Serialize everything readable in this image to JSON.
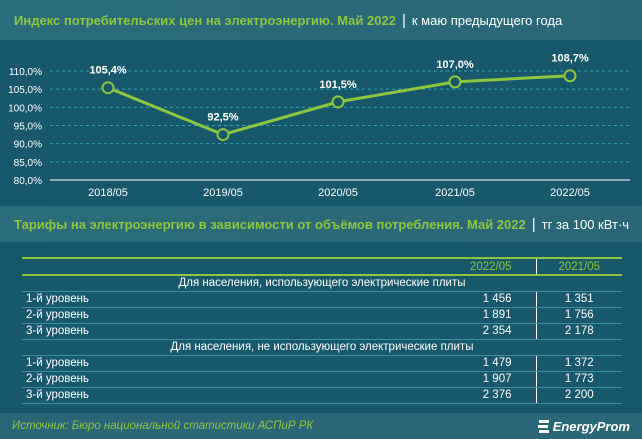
{
  "chart_data": {
    "type": "line",
    "title": "Индекс потребительских цен на электроэнергию. Май 2022",
    "subtitle": "к маю предыдущего года",
    "categories": [
      "2018/05",
      "2019/05",
      "2020/05",
      "2021/05",
      "2022/05"
    ],
    "values": [
      105.4,
      92.5,
      101.5,
      107.0,
      108.7
    ],
    "data_labels": [
      "105,4%",
      "92,5%",
      "101,5%",
      "107,0%",
      "108,7%"
    ],
    "yticks": [
      "80,0%",
      "85,0%",
      "90,0%",
      "95,0%",
      "100,0%",
      "105,0%",
      "110,0%"
    ],
    "ylim": [
      80,
      110
    ],
    "grid": true,
    "line_color": "#8dc63f"
  },
  "table": {
    "title": "Тарифы на электроэнергию в зависимости от объёмов потребления. Май 2022",
    "unit": "тг за 100 кВт·ч",
    "columns": [
      "2022/05",
      "2021/05"
    ],
    "sections": [
      {
        "label": "Для населения, использующего электрические плиты",
        "rows": [
          {
            "label": "1-й уровень",
            "v": [
              "1 456",
              "1 351"
            ]
          },
          {
            "label": "2-й уровень",
            "v": [
              "1 891",
              "1 756"
            ]
          },
          {
            "label": "3-й уровень",
            "v": [
              "2 354",
              "2 178"
            ]
          }
        ]
      },
      {
        "label": "Для населения, не использующего электрические плиты",
        "rows": [
          {
            "label": "1-й уровень",
            "v": [
              "1 479",
              "1 372"
            ]
          },
          {
            "label": "2-й уровень",
            "v": [
              "1 907",
              "1 773"
            ]
          },
          {
            "label": "3-й уровень",
            "v": [
              "2 376",
              "2 200"
            ]
          }
        ]
      }
    ]
  },
  "footer": {
    "source": "Источник: Бюро национальной статистики АСПиР РК",
    "logo": "EnergyProm"
  },
  "colors": {
    "background": "#17596a",
    "accent": "#8dc63f"
  }
}
